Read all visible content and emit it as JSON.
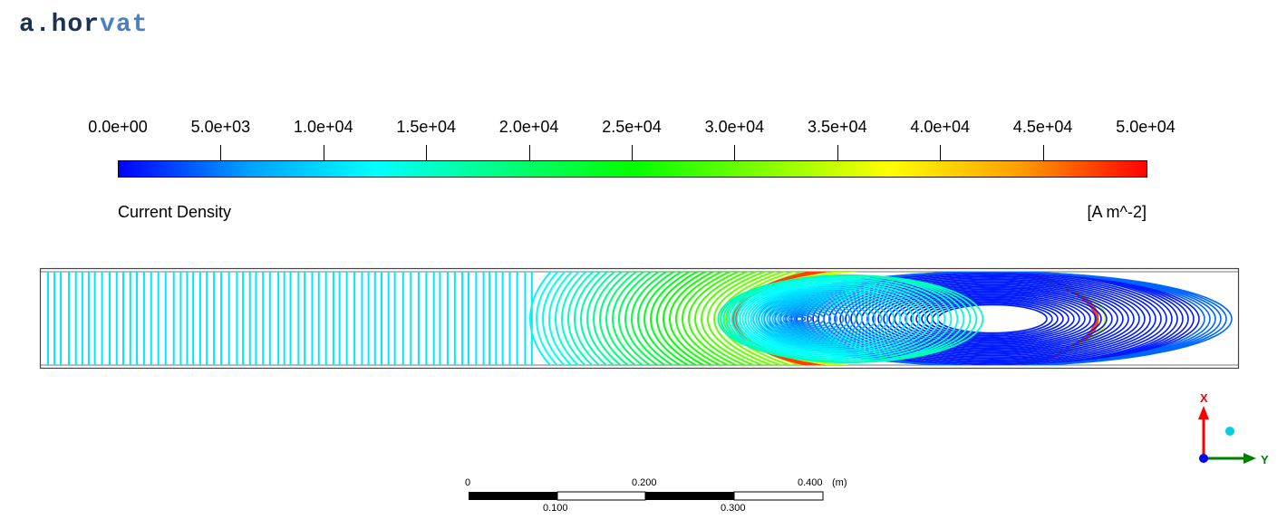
{
  "watermark": {
    "part1": "a.hor",
    "part2": "vat"
  },
  "legend": {
    "title": "Current Density",
    "unit": "[A m^-2]",
    "ticks": [
      "0.0e+00",
      "5.0e+03",
      "1.0e+04",
      "1.5e+04",
      "2.0e+04",
      "2.5e+04",
      "3.0e+04",
      "3.5e+04",
      "4.0e+04",
      "4.5e+04",
      "5.0e+04"
    ],
    "range": [
      0,
      50000
    ],
    "colormap": [
      "#0000ff",
      "#00a0ff",
      "#00ffff",
      "#00ff80",
      "#00ff00",
      "#80ff00",
      "#ffff00",
      "#ffa000",
      "#ff0000"
    ]
  },
  "scale_bar": {
    "top_labels": [
      "0",
      "0.200",
      "0.400"
    ],
    "bottom_labels": [
      "0.100",
      "0.300"
    ],
    "unit": "(m)"
  },
  "axes_triad": {
    "x_label": "X",
    "y_label": "Y",
    "x_color": "#ff0000",
    "y_color": "#008000",
    "z_color": "#0000ff"
  }
}
